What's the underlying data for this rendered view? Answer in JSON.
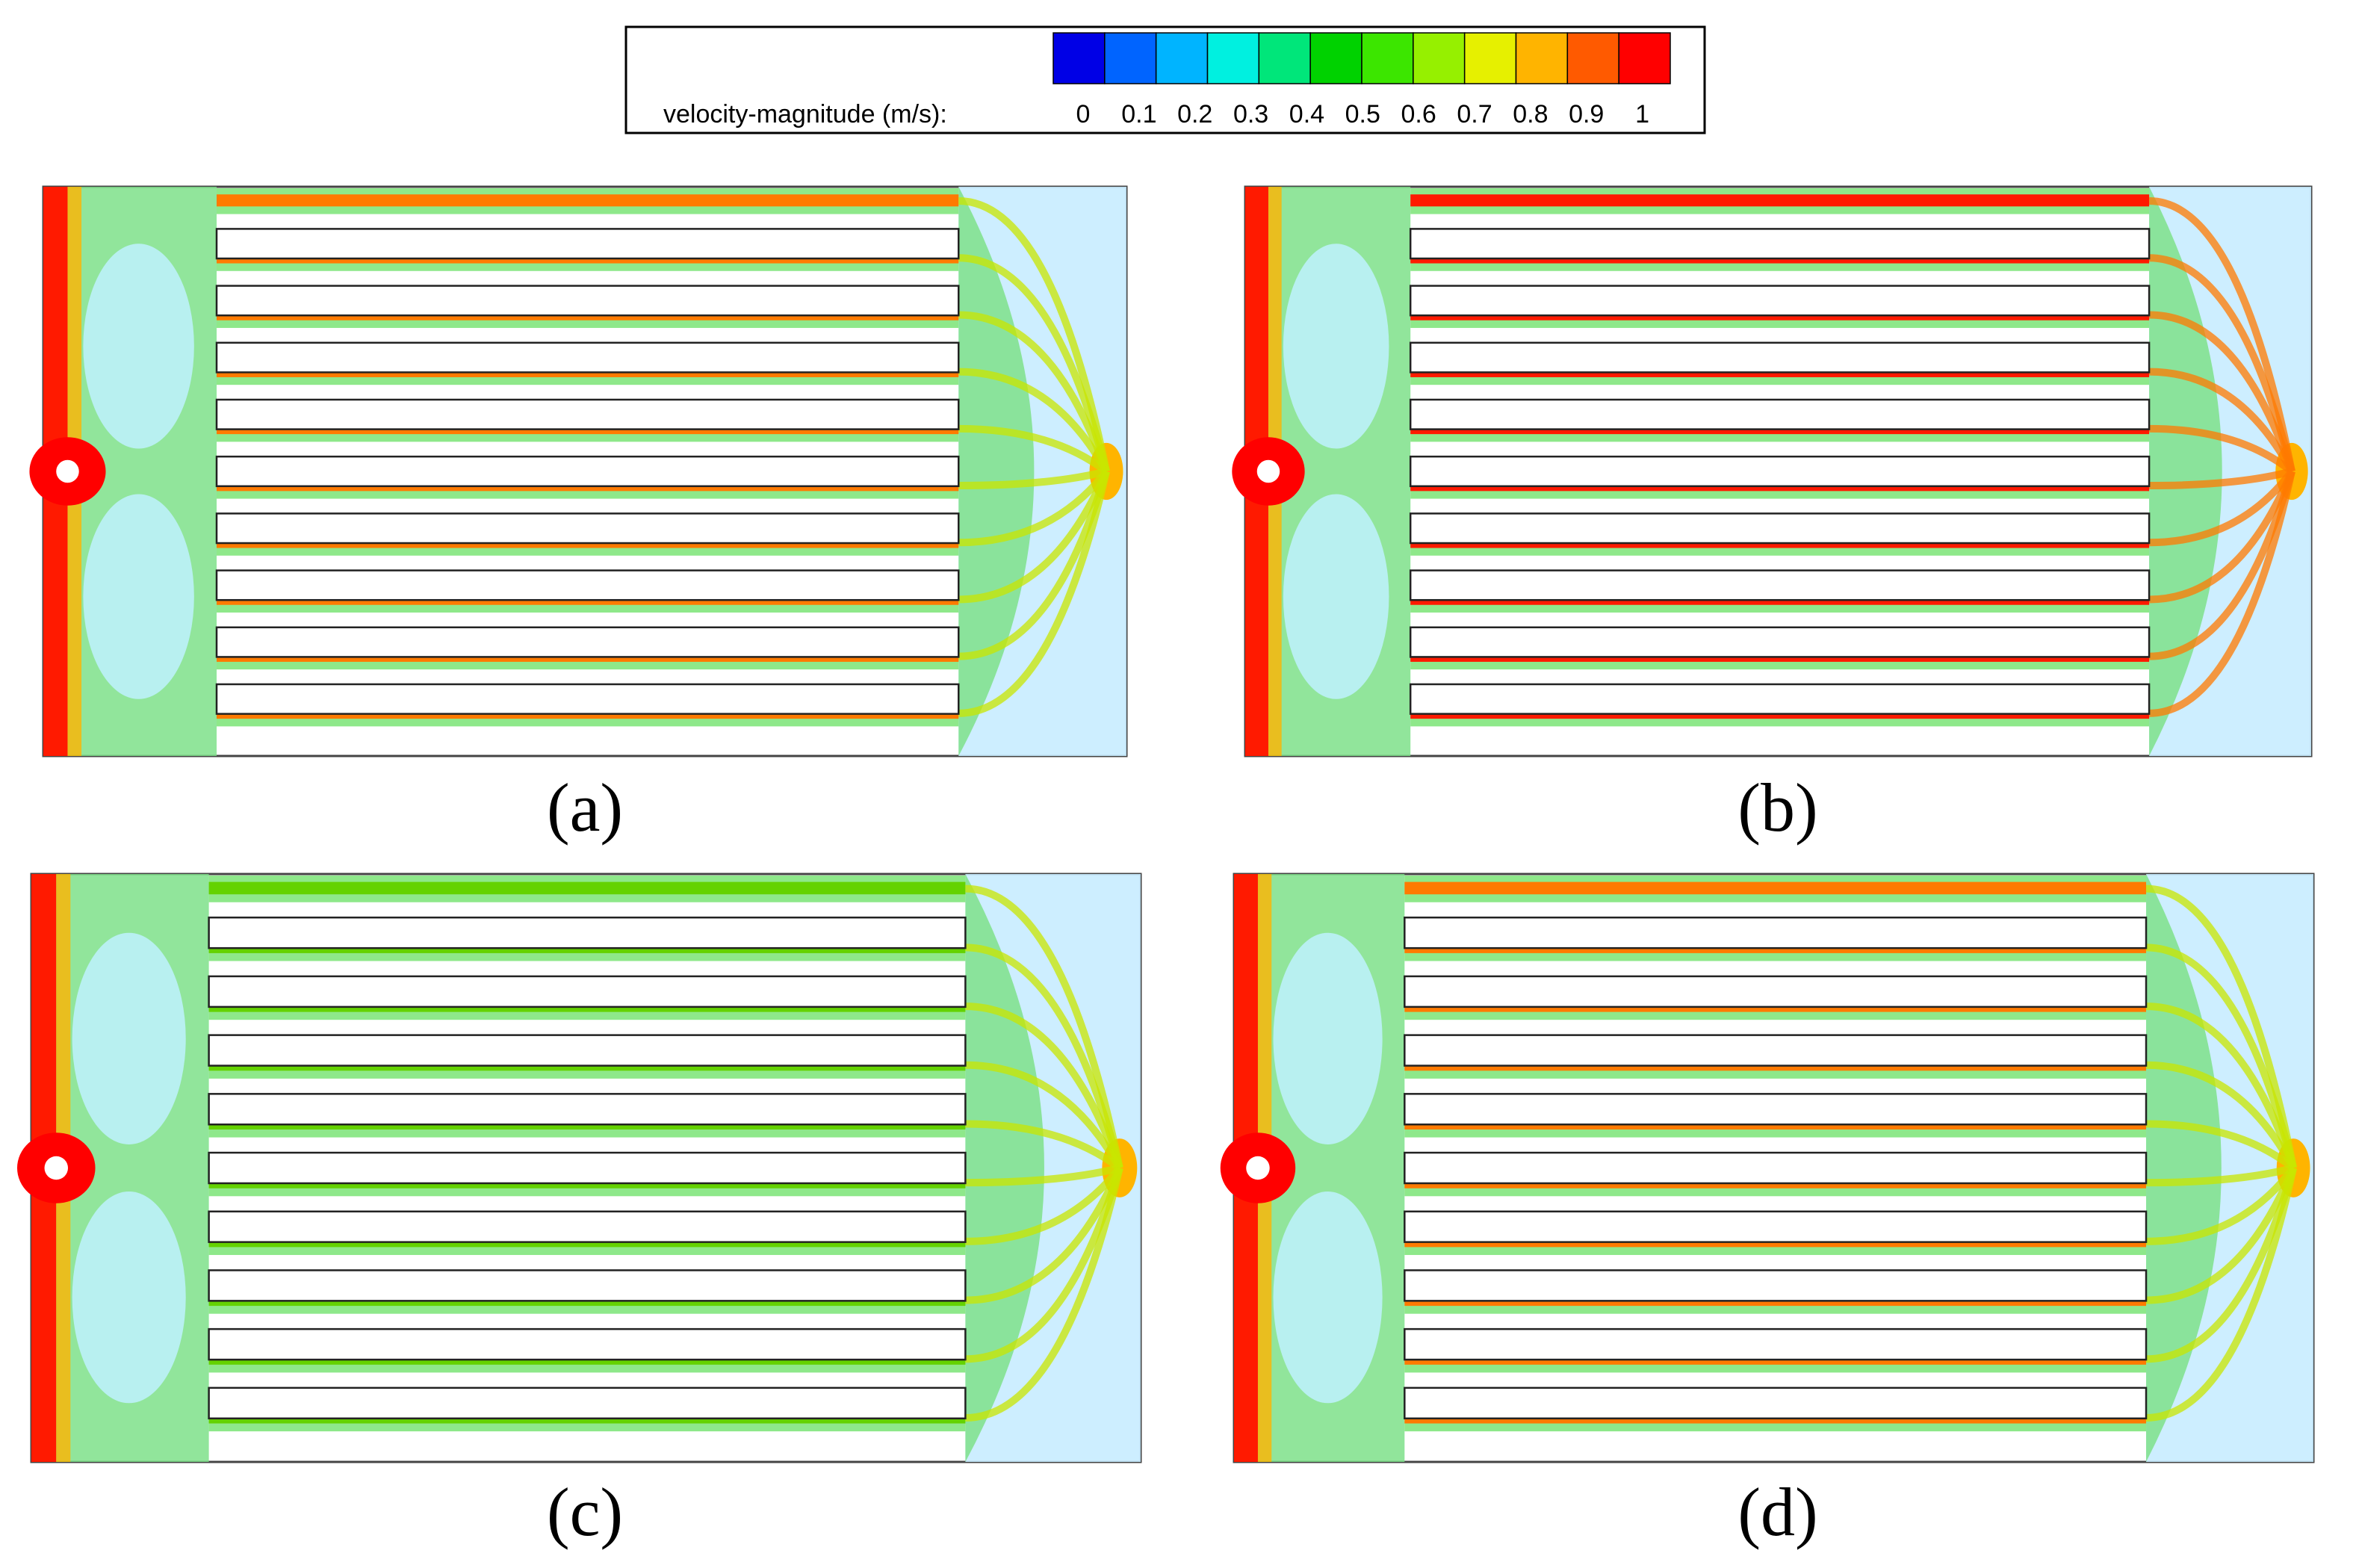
{
  "legend": {
    "title": "velocity-magnitude (m/s):",
    "colors": [
      "#0000e6",
      "#0064ff",
      "#00b4ff",
      "#00f0e0",
      "#00e67a",
      "#00d200",
      "#3ce600",
      "#96f000",
      "#e6f000",
      "#ffb400",
      "#ff5a00",
      "#ff0000"
    ],
    "ticks": [
      "0",
      "0.1",
      "0.2",
      "0.3",
      "0.4",
      "0.5",
      "0.6",
      "0.7",
      "0.8",
      "0.9",
      "1"
    ]
  },
  "panels": [
    {
      "label": "(a)",
      "channel_intensity": 0.8
    },
    {
      "label": "(b)",
      "channel_intensity": 1.0
    },
    {
      "label": "(c)",
      "channel_intensity": 0.55
    },
    {
      "label": "(d)",
      "channel_intensity": 0.82
    }
  ]
}
